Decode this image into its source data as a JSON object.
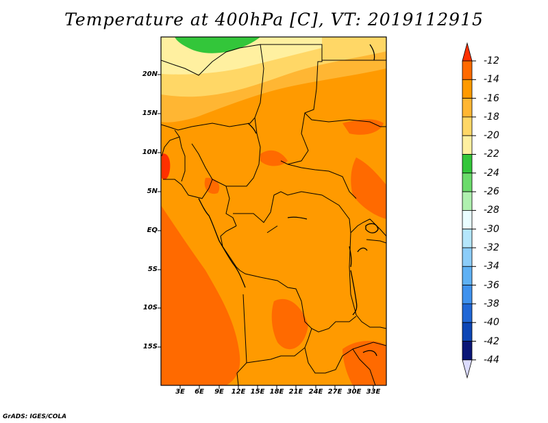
{
  "title": "Temperature at 400hPa [C], VT: 2019112915",
  "credit": "GrADS: IGES/COLA",
  "map": {
    "variable": "Temperature",
    "level": "400hPa",
    "units": "C",
    "valid_time": "2019112915",
    "lat_labels": [
      "20N",
      "15N",
      "10N",
      "5N",
      "EQ",
      "5S",
      "10S",
      "15S"
    ],
    "lon_labels": [
      "3E",
      "6E",
      "9E",
      "12E",
      "15E",
      "18E",
      "21E",
      "24E",
      "27E",
      "30E",
      "33E"
    ]
  },
  "colorbar": {
    "labels": [
      "-12",
      "-14",
      "-16",
      "-18",
      "-20",
      "-22",
      "-24",
      "-26",
      "-28",
      "-30",
      "-32",
      "-34",
      "-36",
      "-38",
      "-40",
      "-42",
      "-44"
    ],
    "colors": [
      "#ff3000",
      "#ff6a00",
      "#ff9a00",
      "#ffb633",
      "#ffd766",
      "#fff0a0",
      "#33c63a",
      "#6bdb6b",
      "#aff0af",
      "#e9fdff",
      "#b4e6fb",
      "#8ccdf9",
      "#5fb1f4",
      "#3f92ee",
      "#2067d6",
      "#0c45b5",
      "#0a1677"
    ],
    "max_arrow_color": "#ff3000",
    "min_arrow_color": "#dcdcff"
  }
}
